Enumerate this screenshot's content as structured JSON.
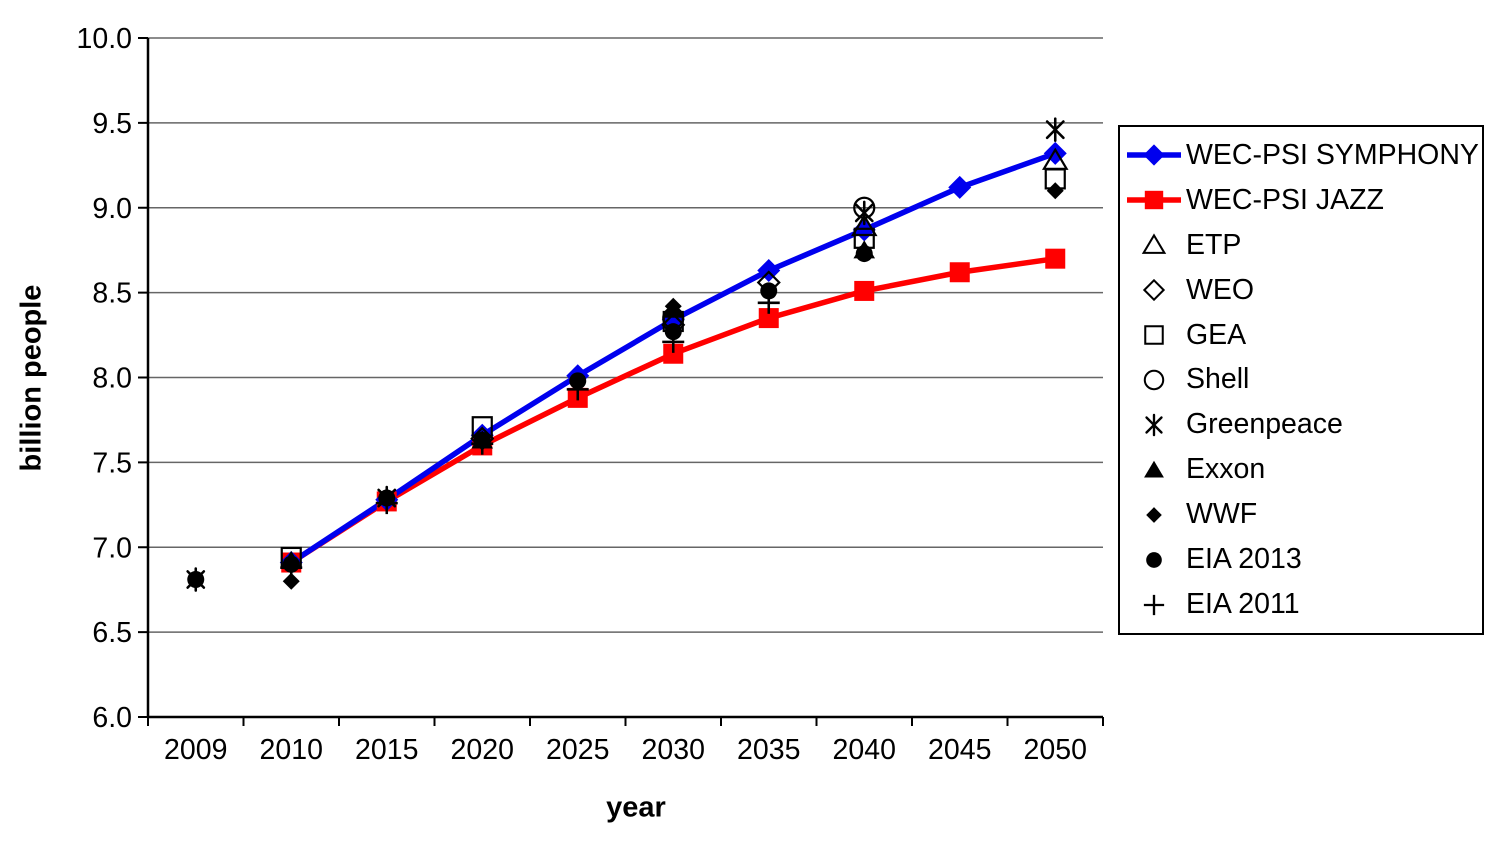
{
  "chart_data": {
    "type": "line",
    "title": "",
    "xlabel": "year",
    "ylabel": "billion people",
    "categories": [
      "2009",
      "2010",
      "2015",
      "2020",
      "2025",
      "2030",
      "2035",
      "2040",
      "2045",
      "2050"
    ],
    "ylim": [
      6.0,
      10.0
    ],
    "ytick_step": 0.5,
    "ytick_labels": [
      "6.0",
      "6.5",
      "7.0",
      "7.5",
      "8.0",
      "8.5",
      "9.0",
      "9.5",
      "10.0"
    ],
    "grid": "horizontal",
    "legend_position": "right",
    "colors": {
      "background": "#ffffff",
      "axis": "#000000",
      "grid": "#666666",
      "symphony_blue": "#0000ee",
      "jazz_red": "#ff0000",
      "scatter_black": "#000000"
    },
    "series": [
      {
        "name": "WEC-PSI SYMPHONY",
        "type": "line",
        "color": "#0000ee",
        "marker": "diamond-filled",
        "values": [
          null,
          6.91,
          7.28,
          7.66,
          8.01,
          8.34,
          8.63,
          8.87,
          9.12,
          9.32
        ]
      },
      {
        "name": "WEC-PSI JAZZ",
        "type": "line",
        "color": "#ff0000",
        "marker": "square-filled",
        "values": [
          null,
          6.91,
          7.27,
          7.6,
          7.88,
          8.14,
          8.35,
          8.51,
          8.62,
          8.7
        ]
      },
      {
        "name": "ETP",
        "type": "scatter",
        "color": "#000000",
        "marker": "triangle-open",
        "values": [
          null,
          null,
          null,
          null,
          null,
          null,
          null,
          8.89,
          null,
          9.28
        ]
      },
      {
        "name": "WEO",
        "type": "scatter",
        "color": "#000000",
        "marker": "diamond-open",
        "values": [
          null,
          null,
          null,
          7.64,
          null,
          8.31,
          8.56,
          null,
          null,
          null
        ]
      },
      {
        "name": "GEA",
        "type": "scatter",
        "color": "#000000",
        "marker": "square-open",
        "values": [
          null,
          6.94,
          null,
          7.71,
          null,
          8.33,
          null,
          8.82,
          null,
          9.17
        ]
      },
      {
        "name": "Shell",
        "type": "scatter",
        "color": "#000000",
        "marker": "circle-open",
        "values": [
          null,
          null,
          null,
          null,
          null,
          8.35,
          null,
          9.0,
          null,
          null
        ]
      },
      {
        "name": "Greenpeace",
        "type": "scatter",
        "color": "#000000",
        "marker": "asterisk",
        "values": [
          6.81,
          null,
          7.29,
          null,
          null,
          null,
          null,
          8.97,
          null,
          9.46
        ]
      },
      {
        "name": "Exxon",
        "type": "scatter",
        "color": "#000000",
        "marker": "triangle-filled",
        "values": [
          null,
          6.92,
          null,
          7.63,
          null,
          8.4,
          null,
          8.75,
          null,
          null
        ]
      },
      {
        "name": "WWF",
        "type": "scatter",
        "color": "#000000",
        "marker": "diamond-filled-small",
        "values": [
          null,
          6.8,
          null,
          null,
          null,
          8.42,
          null,
          null,
          null,
          9.1
        ]
      },
      {
        "name": "EIA 2013",
        "type": "scatter",
        "color": "#000000",
        "marker": "circle-filled",
        "values": [
          6.81,
          6.9,
          7.29,
          7.63,
          7.98,
          8.27,
          8.51,
          8.73,
          null,
          null
        ]
      },
      {
        "name": "EIA 2011",
        "type": "scatter",
        "color": "#000000",
        "marker": "plus",
        "values": [
          null,
          6.88,
          7.26,
          7.61,
          7.93,
          8.21,
          8.44,
          null,
          null,
          null
        ]
      }
    ]
  }
}
